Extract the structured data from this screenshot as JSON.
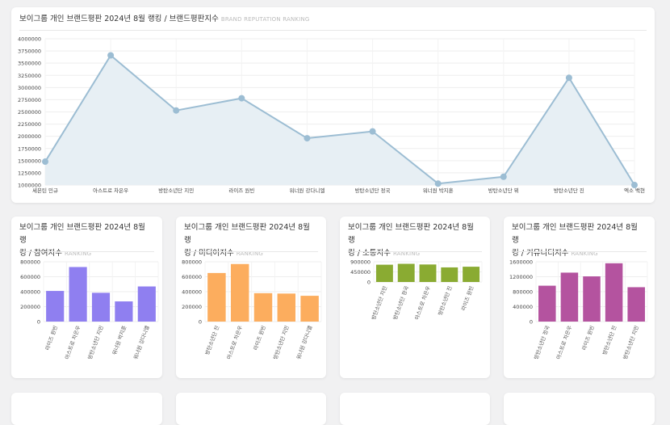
{
  "main_card": {
    "title": "보이그룹 개인 브랜드평판 2024년 8월 랭킹 / 브랜드평판지수",
    "subtitle": "BRAND REPUTATION RANKING"
  },
  "small_cards": [
    {
      "title_line1": "보이그룹 개인 브랜드평판 2024년 8월 랭",
      "title_line2": "킹 / 참여지수",
      "subtitle": "RANKING"
    },
    {
      "title_line1": "보이그룹 개인 브랜드평판 2024년 8월 랭",
      "title_line2": "킹 / 미디어지수",
      "subtitle": "RANKING"
    },
    {
      "title_line1": "보이그룹 개인 브랜드평판 2024년 8월 랭",
      "title_line2": "킹 / 소통지수",
      "subtitle": "RANKING"
    },
    {
      "title_line1": "보이그룹 개인 브랜드평판 2024년 8월 랭",
      "title_line2": "킹 / 커뮤니티지수",
      "subtitle": "RANKING"
    }
  ],
  "chart_data": [
    {
      "type": "area",
      "categories": [
        "세븐틴 민규",
        "아스트로 차은우",
        "방탄소년단 지민",
        "라이즈 원빈",
        "워너원 강다니엘",
        "방탄소년단 정국",
        "워너원 박지훈",
        "방탄소년단 뷔",
        "방탄소년단 진",
        "엑소 백현"
      ],
      "values": [
        1480000,
        3660000,
        2530000,
        2780000,
        1960000,
        2100000,
        1030000,
        1170000,
        3200000,
        1000000
      ],
      "ylim": [
        1000000,
        4000000
      ],
      "yticks": [
        1000000,
        1250000,
        1500000,
        1750000,
        2000000,
        2250000,
        2500000,
        2750000,
        3000000,
        3250000,
        3500000,
        3750000,
        4000000
      ],
      "color": "#9cbdd3",
      "fill": "#e7eff4",
      "grid": true
    },
    {
      "type": "bar",
      "categories": [
        "라이즈 원빈",
        "아스트로 차은우",
        "방탄소년단 지민",
        "워너원 박지훈",
        "워너원 강다니엘"
      ],
      "values": [
        410000,
        730000,
        385000,
        270000,
        470000
      ],
      "ylim": [
        0,
        800000
      ],
      "yticks": [
        0,
        200000,
        400000,
        600000,
        800000
      ],
      "color": "#8f7ff0",
      "grid": true
    },
    {
      "type": "bar",
      "categories": [
        "방탄소년단 진",
        "아스트로 차은우",
        "라이즈 원빈",
        "방탄소년단 지민",
        "워너원 강다니엘"
      ],
      "values": [
        650000,
        770000,
        380000,
        375000,
        345000
      ],
      "ylim": [
        0,
        800000
      ],
      "yticks": [
        0,
        200000,
        400000,
        600000,
        800000
      ],
      "color": "#fcad5e",
      "grid": true
    },
    {
      "type": "bar",
      "categories": [
        "방탄소년단 지민",
        "방탄소년단 정국",
        "아스트로 차은우",
        "방탄소년단 진",
        "라이즈 원빈"
      ],
      "values": [
        770000,
        810000,
        780000,
        650000,
        680000
      ],
      "ylim": [
        0,
        900000
      ],
      "yticks": [
        0,
        450000,
        900000
      ],
      "color": "#8aab32",
      "grid": true
    },
    {
      "type": "bar",
      "categories": [
        "방탄소년단 정국",
        "아스트로 차은우",
        "라이즈 원빈",
        "방탄소년단 진",
        "방탄소년단 지민"
      ],
      "values": [
        960000,
        1310000,
        1210000,
        1560000,
        920000
      ],
      "ylim": [
        0,
        1600000
      ],
      "yticks": [
        0,
        400000,
        800000,
        1200000,
        1600000
      ],
      "color": "#b4539f",
      "grid": true
    }
  ]
}
